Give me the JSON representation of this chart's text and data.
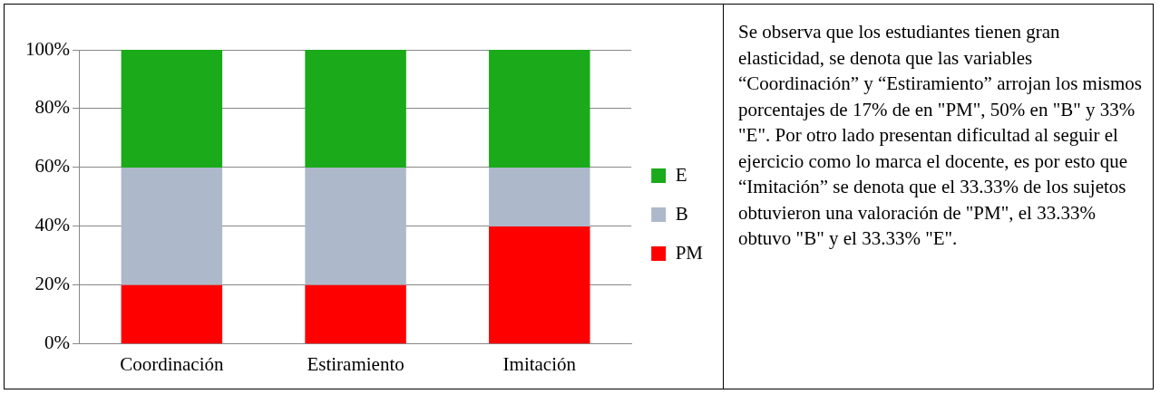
{
  "chart_data": {
    "type": "bar",
    "stacked": true,
    "categories": [
      "Coordinación",
      "Estiramiento",
      "Imitación"
    ],
    "series": [
      {
        "name": "PM",
        "color": "#ff0000",
        "values": [
          20,
          20,
          40
        ]
      },
      {
        "name": "B",
        "color": "#adb9ca",
        "values": [
          40,
          40,
          20
        ]
      },
      {
        "name": "E",
        "color": "#1aaa1a",
        "values": [
          40,
          40,
          40
        ]
      }
    ],
    "ylim": [
      0,
      100
    ],
    "yticks": [
      {
        "value": 0,
        "label": "0%"
      },
      {
        "value": 20,
        "label": "20%"
      },
      {
        "value": 40,
        "label": "40%"
      },
      {
        "value": 60,
        "label": "60%"
      },
      {
        "value": 80,
        "label": "80%"
      },
      {
        "value": 100,
        "label": "100%"
      }
    ],
    "grid": "y",
    "legend": "right",
    "annotations": [
      "Se observa que los estudiantes tienen gran elasticidad, se denota que las variables “Coordinación” y “Estiramiento” arrojan los mismos porcentajes de 17% de en \"PM\", 50% en \"B\" y 33% \"E\". Por otro lado presentan dificultad al seguir el ejercicio como lo marca el docente, es por esto que “Imitación” se denota que el 33.33% de los sujetos obtuvieron una valoración de \"PM\", el 33.33% obtuvo \"B\" y el 33.33% \"E\"."
    ]
  }
}
